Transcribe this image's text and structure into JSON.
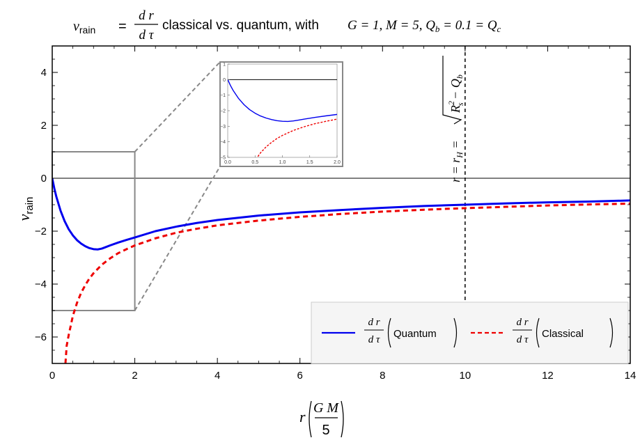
{
  "chart_data": {
    "type": "line",
    "title": {
      "lhs_var": "v",
      "lhs_sub": "rain",
      "eq": "=",
      "frac_num": "d r",
      "frac_den": "d τ",
      "text": "classical vs. quantum, with",
      "params": "G = 1, M = 5, Q",
      "params_sub_b": "b",
      "params_tail": " = 0.1 = Q",
      "params_sub_c": "c"
    },
    "xlabel": {
      "var": "r",
      "num": "G M",
      "den": "5"
    },
    "ylabel": {
      "var": "v",
      "sub": "rain"
    },
    "xlim": [
      0,
      14
    ],
    "ylim": [
      -7,
      5
    ],
    "xticks": [
      "0",
      "2",
      "4",
      "6",
      "8",
      "10",
      "12",
      "14"
    ],
    "yticks": [
      "−6",
      "−4",
      "−2",
      "0",
      "2",
      "4"
    ],
    "zero_line": true,
    "vertical_line": {
      "x": 10,
      "label": {
        "a": "r = r",
        "sub_h": "H",
        "b": " = ",
        "rad_1": "R",
        "sup_2": "2",
        "sub_s": "s",
        "rad_2": " − Q",
        "sub_b": "b"
      }
    },
    "series": [
      {
        "name": "Quantum",
        "color": "#0000ee",
        "style": "solid",
        "points": [
          [
            0.0,
            0.0
          ],
          [
            0.05,
            -0.38
          ],
          [
            0.1,
            -0.7
          ],
          [
            0.2,
            -1.22
          ],
          [
            0.3,
            -1.62
          ],
          [
            0.4,
            -1.93
          ],
          [
            0.5,
            -2.16
          ],
          [
            0.6,
            -2.34
          ],
          [
            0.7,
            -2.47
          ],
          [
            0.8,
            -2.57
          ],
          [
            0.9,
            -2.64
          ],
          [
            1.0,
            -2.68
          ],
          [
            1.1,
            -2.69
          ],
          [
            1.2,
            -2.66
          ],
          [
            1.3,
            -2.6
          ],
          [
            1.4,
            -2.54
          ],
          [
            1.6,
            -2.43
          ],
          [
            1.8,
            -2.33
          ],
          [
            2.0,
            -2.24
          ],
          [
            2.5,
            -2.0
          ],
          [
            3,
            -1.83
          ],
          [
            3.5,
            -1.69
          ],
          [
            4,
            -1.58
          ],
          [
            5,
            -1.41
          ],
          [
            6,
            -1.29
          ],
          [
            7,
            -1.2
          ],
          [
            8,
            -1.12
          ],
          [
            9,
            -1.05
          ],
          [
            10,
            -1.0
          ],
          [
            11,
            -0.95
          ],
          [
            12,
            -0.91
          ],
          [
            13,
            -0.88
          ],
          [
            14,
            -0.84
          ]
        ]
      },
      {
        "name": "Classical",
        "color": "#ee0000",
        "style": "dashed",
        "points": [
          [
            0.32,
            -7.0
          ],
          [
            0.35,
            -6.33
          ],
          [
            0.4,
            -5.92
          ],
          [
            0.5,
            -5.2
          ],
          [
            0.6,
            -4.71
          ],
          [
            0.7,
            -4.33
          ],
          [
            0.8,
            -4.04
          ],
          [
            0.9,
            -3.79
          ],
          [
            1.0,
            -3.59
          ],
          [
            1.2,
            -3.27
          ],
          [
            1.4,
            -3.03
          ],
          [
            1.6,
            -2.83
          ],
          [
            1.8,
            -2.68
          ],
          [
            2.0,
            -2.54
          ],
          [
            2.5,
            -2.27
          ],
          [
            3,
            -2.06
          ],
          [
            3.5,
            -1.91
          ],
          [
            4,
            -1.78
          ],
          [
            5,
            -1.6
          ],
          [
            6,
            -1.46
          ],
          [
            7,
            -1.35
          ],
          [
            8,
            -1.26
          ],
          [
            9,
            -1.19
          ],
          [
            10,
            -1.13
          ],
          [
            11,
            -1.08
          ],
          [
            12,
            -1.03
          ],
          [
            13,
            -0.99
          ],
          [
            14,
            -0.96
          ]
        ]
      }
    ],
    "legend": {
      "placement": "bottom-right",
      "frac_num": "d r",
      "frac_den": "d τ",
      "entries": [
        "Quantum",
        "Classical"
      ]
    },
    "zoom_box": {
      "xlim": [
        0,
        2
      ],
      "ylim": [
        -5,
        1
      ]
    },
    "inset": {
      "xlim": [
        0,
        2
      ],
      "ylim": [
        -5,
        1
      ],
      "xticks": [
        "0.0",
        "0.5",
        "1.0",
        "1.5",
        "2.0"
      ],
      "yticks": [
        "−5",
        "−4",
        "−3",
        "−2",
        "−1",
        "0",
        "1"
      ]
    }
  }
}
